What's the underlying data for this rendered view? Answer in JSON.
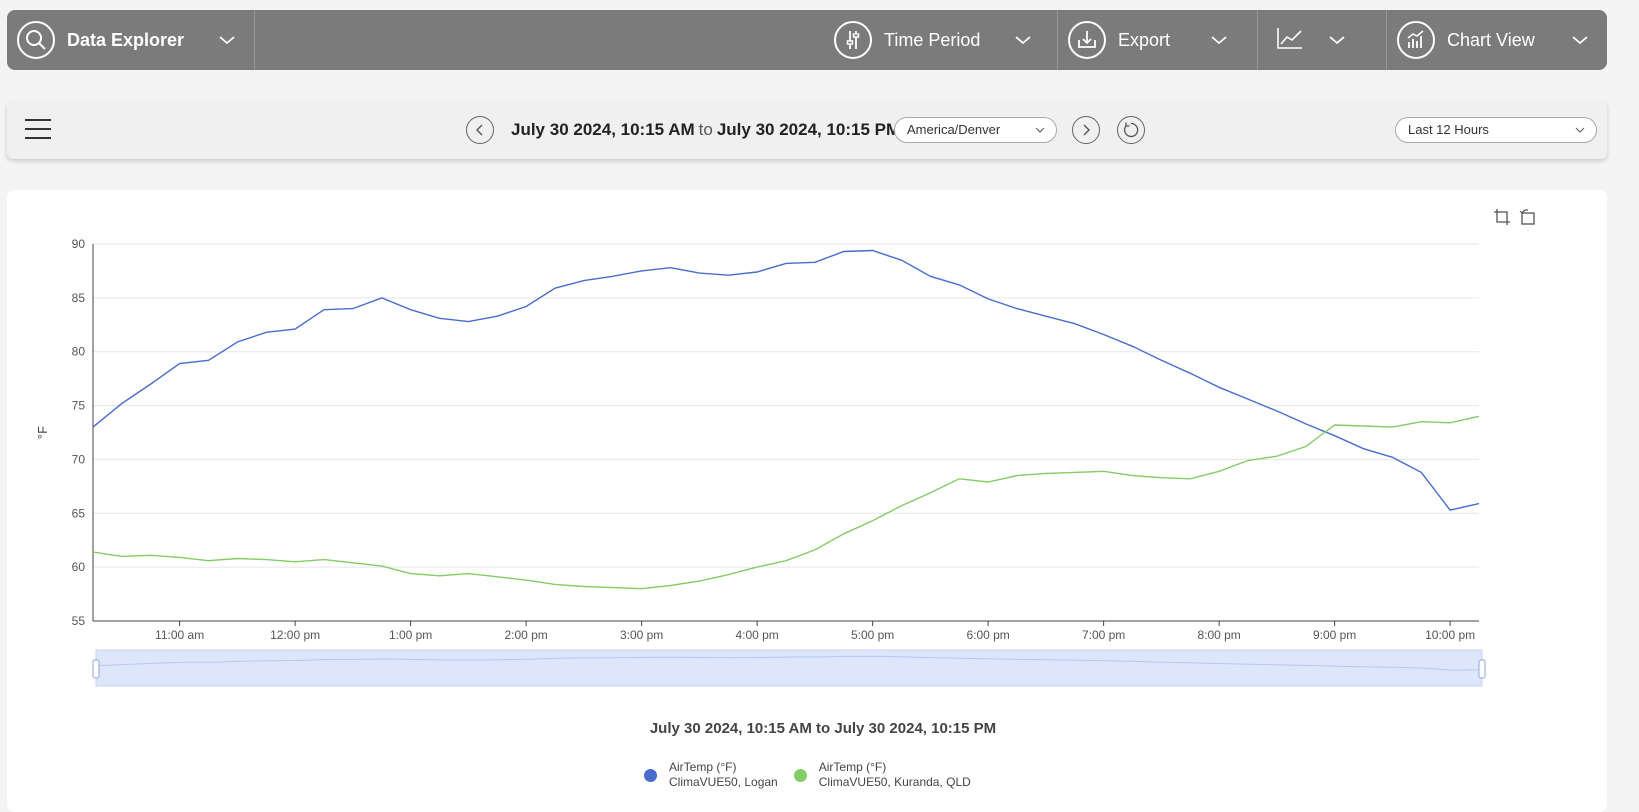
{
  "toolbar": {
    "app_title": "Data Explorer",
    "time_period_label": "Time Period",
    "export_label": "Export",
    "chart_view_label": "Chart View"
  },
  "timebar": {
    "start": "July 30 2024, 10:15 AM",
    "to": "to",
    "end": "July 30 2024, 10:15 PM",
    "timezone": "America/Denver",
    "preset": "Last 12 Hours"
  },
  "chart": {
    "range_caption": "July 30 2024, 10:15 AM to July 30 2024, 10:15 PM"
  },
  "colors": {
    "logan": "#4a6ccd",
    "kuranda": "#86cc66",
    "toolbar": "#7b7b7b"
  },
  "chart_data": {
    "type": "line",
    "ylabel": "°F",
    "ylim": [
      55,
      90
    ],
    "yticks": [
      "55",
      "60",
      "65",
      "70",
      "75",
      "80",
      "85",
      "90"
    ],
    "x_range_hours": [
      10.25,
      22.25
    ],
    "xticks": [
      {
        "hour": 11,
        "label": "11:00 am"
      },
      {
        "hour": 12,
        "label": "12:00 pm"
      },
      {
        "hour": 13,
        "label": "1:00 pm"
      },
      {
        "hour": 14,
        "label": "2:00 pm"
      },
      {
        "hour": 15,
        "label": "3:00 pm"
      },
      {
        "hour": 16,
        "label": "4:00 pm"
      },
      {
        "hour": 17,
        "label": "5:00 pm"
      },
      {
        "hour": 18,
        "label": "6:00 pm"
      },
      {
        "hour": 19,
        "label": "7:00 pm"
      },
      {
        "hour": 20,
        "label": "8:00 pm"
      },
      {
        "hour": 21,
        "label": "9:00 pm"
      },
      {
        "hour": 22,
        "label": "10:00 pm"
      }
    ],
    "series": [
      {
        "name": "AirTemp (°F)",
        "station": "ClimaVUE50, Logan",
        "color": "#4a6ccd",
        "points": [
          [
            10.25,
            73.0
          ],
          [
            10.5,
            75.2
          ],
          [
            10.75,
            77.0
          ],
          [
            11.0,
            78.9
          ],
          [
            11.25,
            79.2
          ],
          [
            11.5,
            80.9
          ],
          [
            11.75,
            81.8
          ],
          [
            12.0,
            82.1
          ],
          [
            12.25,
            83.9
          ],
          [
            12.5,
            84.0
          ],
          [
            12.75,
            85.0
          ],
          [
            13.0,
            83.9
          ],
          [
            13.25,
            83.1
          ],
          [
            13.5,
            82.8
          ],
          [
            13.75,
            83.3
          ],
          [
            14.0,
            84.2
          ],
          [
            14.25,
            85.9
          ],
          [
            14.5,
            86.6
          ],
          [
            14.75,
            87.0
          ],
          [
            15.0,
            87.5
          ],
          [
            15.25,
            87.8
          ],
          [
            15.5,
            87.3
          ],
          [
            15.75,
            87.1
          ],
          [
            16.0,
            87.4
          ],
          [
            16.25,
            88.2
          ],
          [
            16.5,
            88.3
          ],
          [
            16.75,
            89.3
          ],
          [
            17.0,
            89.4
          ],
          [
            17.25,
            88.5
          ],
          [
            17.5,
            87.0
          ],
          [
            17.75,
            86.2
          ],
          [
            18.0,
            84.9
          ],
          [
            18.25,
            84.0
          ],
          [
            18.5,
            83.3
          ],
          [
            18.75,
            82.6
          ],
          [
            19.0,
            81.6
          ],
          [
            19.25,
            80.5
          ],
          [
            19.5,
            79.2
          ],
          [
            19.75,
            78.0
          ],
          [
            20.0,
            76.7
          ],
          [
            20.25,
            75.6
          ],
          [
            20.5,
            74.5
          ],
          [
            20.75,
            73.3
          ],
          [
            21.0,
            72.2
          ],
          [
            21.25,
            71.0
          ],
          [
            21.5,
            70.2
          ],
          [
            21.75,
            68.8
          ],
          [
            22.0,
            65.3
          ],
          [
            22.25,
            65.9
          ]
        ]
      },
      {
        "name": "AirTemp (°F)",
        "station": "ClimaVUE50, Kuranda, QLD",
        "color": "#86cc66",
        "points": [
          [
            10.25,
            61.4
          ],
          [
            10.5,
            61.0
          ],
          [
            10.75,
            61.1
          ],
          [
            11.0,
            60.9
          ],
          [
            11.25,
            60.6
          ],
          [
            11.5,
            60.8
          ],
          [
            11.75,
            60.7
          ],
          [
            12.0,
            60.5
          ],
          [
            12.25,
            60.7
          ],
          [
            12.5,
            60.4
          ],
          [
            12.75,
            60.1
          ],
          [
            13.0,
            59.4
          ],
          [
            13.25,
            59.2
          ],
          [
            13.5,
            59.4
          ],
          [
            13.75,
            59.1
          ],
          [
            14.0,
            58.8
          ],
          [
            14.25,
            58.4
          ],
          [
            14.5,
            58.2
          ],
          [
            14.75,
            58.1
          ],
          [
            15.0,
            58.0
          ],
          [
            15.25,
            58.3
          ],
          [
            15.5,
            58.7
          ],
          [
            15.75,
            59.3
          ],
          [
            16.0,
            60.0
          ],
          [
            16.25,
            60.6
          ],
          [
            16.5,
            61.6
          ],
          [
            16.75,
            63.1
          ],
          [
            17.0,
            64.3
          ],
          [
            17.25,
            65.7
          ],
          [
            17.5,
            66.9
          ],
          [
            17.75,
            68.2
          ],
          [
            18.0,
            67.9
          ],
          [
            18.25,
            68.5
          ],
          [
            18.5,
            68.7
          ],
          [
            18.75,
            68.8
          ],
          [
            19.0,
            68.9
          ],
          [
            19.25,
            68.5
          ],
          [
            19.5,
            68.3
          ],
          [
            19.75,
            68.2
          ],
          [
            20.0,
            68.9
          ],
          [
            20.25,
            69.9
          ],
          [
            20.5,
            70.3
          ],
          [
            20.75,
            71.2
          ],
          [
            21.0,
            73.2
          ],
          [
            21.25,
            73.1
          ],
          [
            21.5,
            73.0
          ],
          [
            21.75,
            73.5
          ],
          [
            22.0,
            73.4
          ],
          [
            22.25,
            74.0
          ]
        ]
      }
    ],
    "legend": "bottom-center",
    "grid": true
  }
}
